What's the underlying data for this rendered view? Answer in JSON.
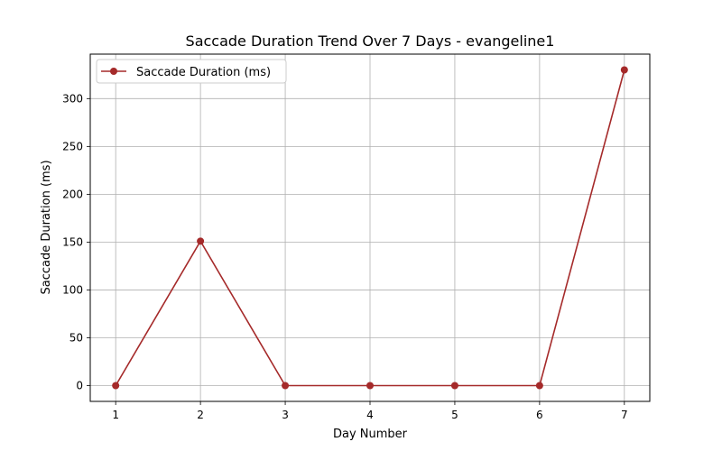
{
  "chart_data": {
    "type": "line",
    "title": "Saccade Duration Trend Over 7 Days - evangeline1",
    "xlabel": "Day Number",
    "ylabel": "Saccade Duration (ms)",
    "x": [
      1,
      2,
      3,
      4,
      5,
      6,
      7
    ],
    "xticks": [
      "1",
      "2",
      "3",
      "4",
      "5",
      "6",
      "7"
    ],
    "yticks": [
      "0",
      "50",
      "100",
      "150",
      "200",
      "250",
      "300"
    ],
    "series": [
      {
        "name": "Saccade Duration (ms)",
        "values": [
          0,
          151,
          0,
          0,
          0,
          0,
          330
        ],
        "color": "#a52a2a",
        "marker": "circle"
      }
    ],
    "xlim": [
      0.7,
      7.3
    ],
    "ylim": [
      -16.5,
      346.5
    ],
    "grid": true,
    "legend_position": "upper-left"
  }
}
